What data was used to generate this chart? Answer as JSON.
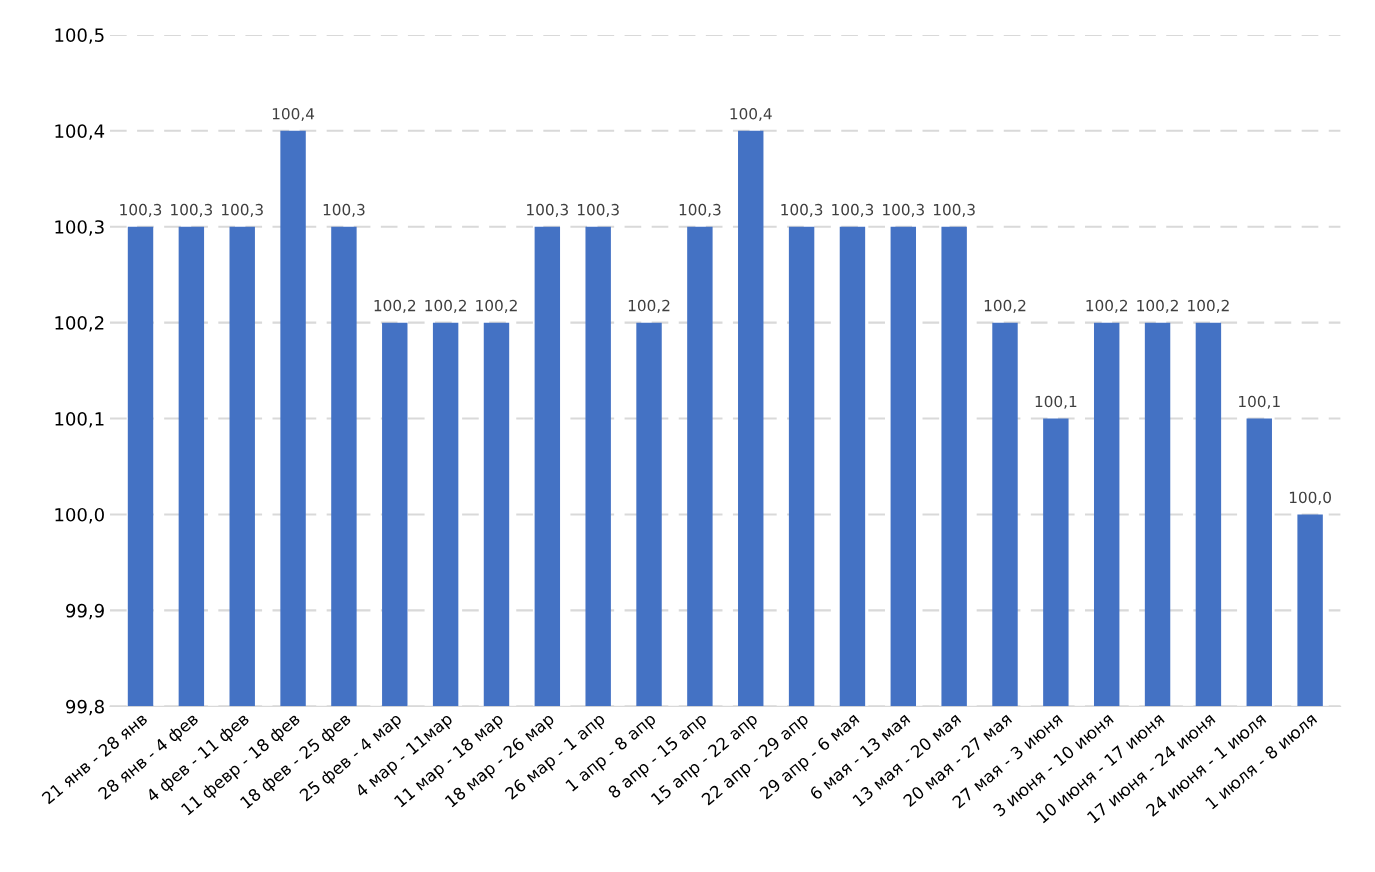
{
  "chart_data": {
    "type": "bar",
    "categories": [
      "21 янв - 28 янв",
      "28 янв - 4 фев",
      "4 фев - 11 фев",
      "11 февр - 18 фев",
      "18 фев - 25 фев",
      "25 фев - 4 мар",
      "4 мар - 11мар",
      "11 мар - 18 мар",
      "18 мар - 26 мар",
      "26 мар - 1 апр",
      "1 апр - 8 апр",
      "8 апр - 15 апр",
      "15 апр - 22 апр",
      "22 апр - 29 апр",
      "29 апр - 6 мая",
      "6 мая - 13 мая",
      "13 мая - 20 мая",
      "20 мая - 27 мая",
      "27 мая - 3 июня",
      "3 июня - 10 июня",
      "10 июня - 17 июня",
      "17 июня - 24 июня",
      "24 июня - 1 июля",
      "1 июля - 8 июля"
    ],
    "values": [
      100.3,
      100.3,
      100.3,
      100.4,
      100.3,
      100.2,
      100.2,
      100.2,
      100.3,
      100.3,
      100.2,
      100.3,
      100.4,
      100.3,
      100.3,
      100.3,
      100.3,
      100.2,
      100.1,
      100.2,
      100.2,
      100.2,
      100.1,
      100.0
    ],
    "value_labels": [
      "100,3",
      "100,3",
      "100,3",
      "100,4",
      "100,3",
      "100,2",
      "100,2",
      "100,2",
      "100,3",
      "100,3",
      "100,2",
      "100,3",
      "100,4",
      "100,3",
      "100,3",
      "100,3",
      "100,3",
      "100,2",
      "100,1",
      "100,2",
      "100,2",
      "100,2",
      "100,1",
      "100,0"
    ],
    "color": "#4472c4",
    "ylim": [
      99.8,
      100.5
    ],
    "yticks": [
      {
        "value": 99.8,
        "label": "99,8"
      },
      {
        "value": 99.9,
        "label": "99,9"
      },
      {
        "value": 100.0,
        "label": "100,0"
      },
      {
        "value": 100.1,
        "label": "100,1"
      },
      {
        "value": 100.2,
        "label": "100,2"
      },
      {
        "value": 100.3,
        "label": "100,3"
      },
      {
        "value": 100.4,
        "label": "100,4"
      },
      {
        "value": 100.5,
        "label": "100,5"
      }
    ],
    "grid": "y"
  }
}
